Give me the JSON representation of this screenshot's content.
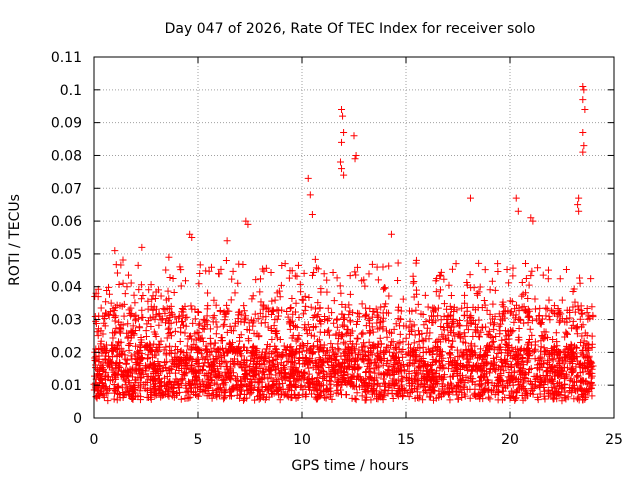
{
  "chart_data": {
    "type": "scatter",
    "title": "Day 047 of 2026, Rate Of TEC Index for receiver solo",
    "xlabel": "GPS time / hours",
    "ylabel": "ROTI / TECUs",
    "xlim": [
      0,
      25
    ],
    "ylim": [
      0,
      0.11
    ],
    "x_ticks": [
      0,
      5,
      10,
      15,
      20,
      25
    ],
    "x_tick_labels": [
      "0",
      "5",
      "10",
      "15",
      "20",
      "25"
    ],
    "y_ticks": [
      0,
      0.01,
      0.02,
      0.03,
      0.04,
      0.05,
      0.06,
      0.07,
      0.08,
      0.09,
      0.1,
      0.11
    ],
    "y_tick_labels": [
      "0",
      "0.01",
      "0.02",
      "0.03",
      "0.04",
      "0.05",
      "0.06",
      "0.07",
      "0.08",
      "0.09",
      "0.1",
      "0.11"
    ],
    "grid": true,
    "marker": "+",
    "colors": {
      "points": "#ff0000",
      "grid": "#a0a0a0",
      "axes": "#000000"
    },
    "series": [
      {
        "name": "ROTI",
        "data_range": [
          0,
          24
        ],
        "typical_band": [
          0.006,
          0.022
        ],
        "notable_points": [
          [
            0.1,
            0.038
          ],
          [
            0.2,
            0.037
          ],
          [
            1.0,
            0.051
          ],
          [
            2.3,
            0.052
          ],
          [
            3.6,
            0.049
          ],
          [
            4.6,
            0.056
          ],
          [
            4.7,
            0.055
          ],
          [
            6.4,
            0.054
          ],
          [
            7.3,
            0.06
          ],
          [
            7.4,
            0.059
          ],
          [
            10.3,
            0.073
          ],
          [
            10.4,
            0.068
          ],
          [
            10.5,
            0.062
          ],
          [
            11.9,
            0.094
          ],
          [
            11.95,
            0.092
          ],
          [
            12.0,
            0.087
          ],
          [
            11.9,
            0.084
          ],
          [
            11.85,
            0.078
          ],
          [
            11.9,
            0.076
          ],
          [
            12.0,
            0.074
          ],
          [
            12.5,
            0.086
          ],
          [
            12.6,
            0.08
          ],
          [
            12.55,
            0.079
          ],
          [
            14.3,
            0.056
          ],
          [
            18.1,
            0.067
          ],
          [
            20.3,
            0.067
          ],
          [
            20.4,
            0.063
          ],
          [
            21.0,
            0.061
          ],
          [
            21.1,
            0.06
          ],
          [
            23.5,
            0.101
          ],
          [
            23.55,
            0.1
          ],
          [
            23.5,
            0.097
          ],
          [
            23.6,
            0.094
          ],
          [
            23.5,
            0.087
          ],
          [
            23.55,
            0.083
          ],
          [
            23.5,
            0.081
          ],
          [
            23.3,
            0.067
          ],
          [
            23.25,
            0.065
          ],
          [
            23.3,
            0.063
          ]
        ]
      }
    ]
  }
}
